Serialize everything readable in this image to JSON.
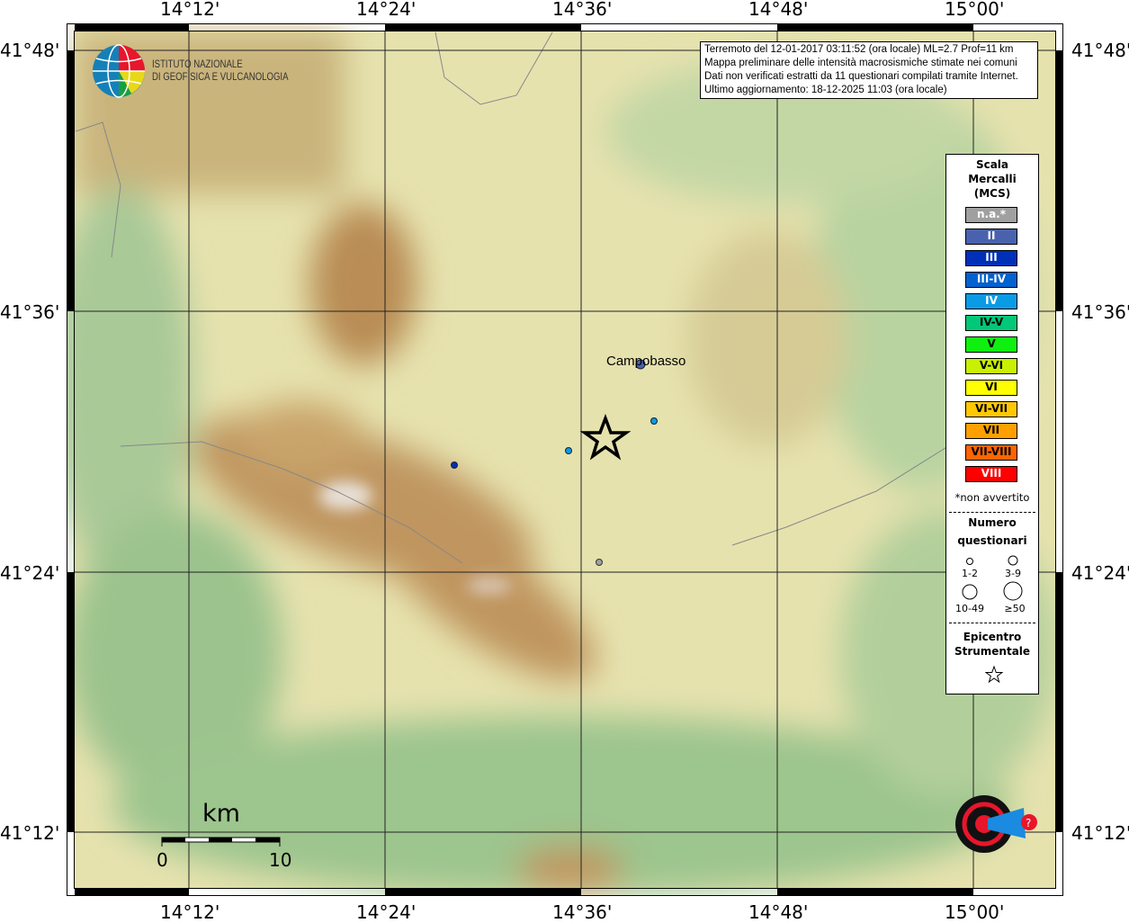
{
  "axes": {
    "top": [
      "14°12'",
      "14°24'",
      "14°36'",
      "14°48'",
      "15°00'"
    ],
    "bottom": [
      "14°12'",
      "14°24'",
      "14°36'",
      "14°48'",
      "15°00'"
    ],
    "left": [
      "41°48'",
      "41°36'",
      "41°24'",
      "41°12'"
    ],
    "right": [
      "41°48'",
      "41°36'",
      "41°24'",
      "41°12'"
    ]
  },
  "info": {
    "line1": "Terremoto del 12-01-2017 03:11:52 (ora locale) ML=2.7 Prof=11 km",
    "line2": "Mappa preliminare delle intensità macrosismiche stimate nei comuni",
    "line3": "Dati non verificati estratti da 11 questionari compilati tramite Internet.",
    "line4": "Ultimo aggiornamento: 18-12-2025 11:03 (ora locale)"
  },
  "logo": {
    "line1": "ISTITUTO NAZIONALE",
    "line2": "DI GEOFISICA E VULCANOLOGIA"
  },
  "haisentito_logo": "www.haisentitoilterremoto.it",
  "legend": {
    "title1": "Scala",
    "title2": "Mercalli",
    "title3": "(MCS)",
    "scale": [
      {
        "label": "n.a.*",
        "color": "#a0a0a0",
        "text": "#fff"
      },
      {
        "label": "II",
        "color": "#4a62ad",
        "text": "#fff"
      },
      {
        "label": "III",
        "color": "#0030b8",
        "text": "#fff"
      },
      {
        "label": "III-IV",
        "color": "#0062d0",
        "text": "#fff"
      },
      {
        "label": "IV",
        "color": "#0a9be6",
        "text": "#fff"
      },
      {
        "label": "IV-V",
        "color": "#00c878",
        "text": "#000"
      },
      {
        "label": "V",
        "color": "#10f010",
        "text": "#000"
      },
      {
        "label": "V-VI",
        "color": "#c8f000",
        "text": "#000"
      },
      {
        "label": "VI",
        "color": "#ffff00",
        "text": "#000"
      },
      {
        "label": "VI-VII",
        "color": "#ffc800",
        "text": "#000"
      },
      {
        "label": "VII",
        "color": "#ffa000",
        "text": "#000"
      },
      {
        "label": "VII-VIII",
        "color": "#ff6400",
        "text": "#000"
      },
      {
        "label": "VIII",
        "color": "#ff0000",
        "text": "#fff"
      }
    ],
    "note": "*non avvertito",
    "count_title1": "Numero",
    "count_title2": "questionari",
    "counts": [
      "1-2",
      "3-9",
      "10-49",
      "≥50"
    ],
    "epi1": "Epicentro",
    "epi2": "Strumentale"
  },
  "places": [
    {
      "name": "Campobasso",
      "intensity": "II"
    }
  ],
  "points": [
    {
      "intensity": "II",
      "lon": "14°40'",
      "lat": "41°33'"
    },
    {
      "intensity": "IV",
      "lon": "14°41'",
      "lat": "41°31'"
    },
    {
      "intensity": "IV",
      "lon": "14°35'",
      "lat": "41°30'"
    },
    {
      "intensity": "III",
      "lon": "14°28'",
      "lat": "41°29'"
    },
    {
      "intensity": "n.a.*",
      "lon": "14°37'",
      "lat": "41°23'"
    }
  ],
  "scalebar": {
    "unit": "km",
    "start": "0",
    "end": "10"
  }
}
